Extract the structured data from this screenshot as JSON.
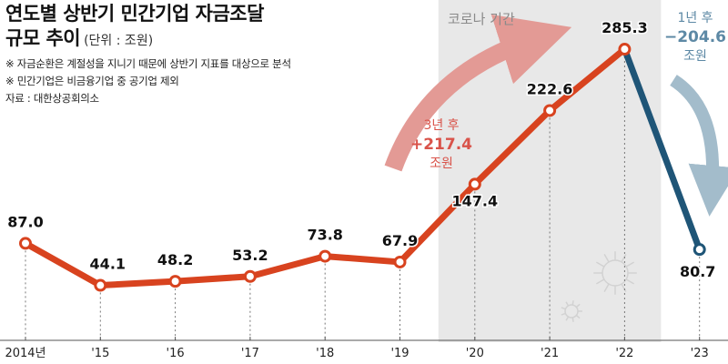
{
  "header": {
    "title_line1": "연도별 상반기 민간기업 자금조달",
    "title_line2": "규모 추이",
    "unit": "(단위 : 조원)",
    "notes": [
      "※ 자금순환은 계절성을 지니기 때문에 상반기 지표를 대상으로 분석",
      "※ 민간기업은 비금융기업 중 공기업 제외"
    ],
    "source": "자료 : 대한상공회의소"
  },
  "annotations": {
    "covid_period": "코로나 기간",
    "increase": {
      "line1": "3년 후",
      "amount": "+217.4",
      "unit": "조원"
    },
    "decrease": {
      "line1": "1년 후",
      "amount": "−204.6",
      "unit": "조원"
    }
  },
  "colors": {
    "main_line": "#d8431f",
    "decline_line": "#1f5577",
    "up_arrow": "#e39a95",
    "down_arrow": "#a3bccb",
    "covid_shade": "#e8e8e8"
  },
  "chart_data": {
    "type": "line",
    "x": [
      "2014년",
      "'15",
      "'16",
      "'17",
      "'18",
      "'19",
      "'20",
      "'21",
      "'22",
      "'23"
    ],
    "values": [
      87.0,
      44.1,
      48.2,
      53.2,
      73.8,
      67.9,
      147.4,
      222.6,
      285.3,
      80.7
    ],
    "data_labels": [
      "87.0",
      "44.1",
      "48.2",
      "53.2",
      "73.8",
      "67.9",
      "147.4",
      "222.6",
      "285.3",
      "80.7"
    ],
    "shaded_period": [
      "'20",
      "'22"
    ],
    "highlighted_segment": [
      "'22",
      "'23"
    ]
  }
}
